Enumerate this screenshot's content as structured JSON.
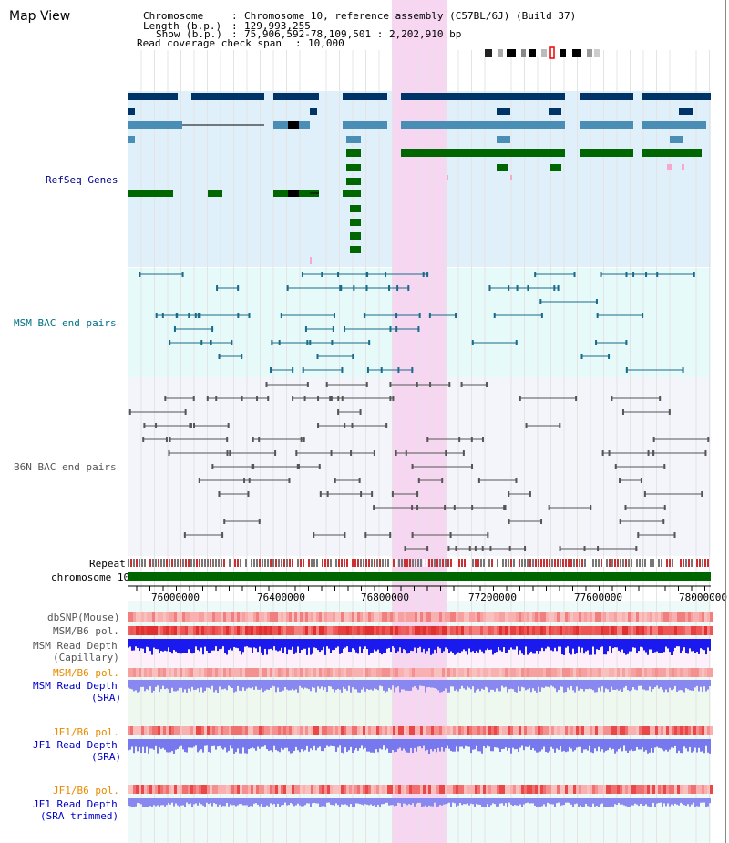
{
  "app": {
    "title": "Map View"
  },
  "header": {
    "chromosome_label": "Chromosome",
    "chromosome_value": "Chromosome 10, reference assembly (C57BL/6J) (Build 37)",
    "length_label": "Length (b.p.)",
    "length_value": "129,993,255",
    "show_label": "Show (b.p.)",
    "show_value": "75,906,592-78,109,501 : 2,202,910 bp",
    "coverage_label": "Read coverage check span",
    "coverage_value": "10,000"
  },
  "tracks": {
    "refseq": "RefSeq Genes",
    "msm_bac": "MSM BAC end pairs",
    "b6n_bac": "B6N BAC end pairs",
    "repeat": "Repeat",
    "chromosome": "chromosome 10",
    "dbsnp": "dbSNP(Mouse)",
    "msm_pol": "MSM/B6 pol.",
    "msm_depth_cap_1": "MSM Read Depth",
    "msm_depth_cap_2": "(Capillary)",
    "msm_pol_2": "MSM/B6 pol.",
    "msm_depth_sra_1": "MSM Read Depth",
    "msm_depth_sra_2": "(SRA)",
    "jf1_pol": "JF1/B6 pol.",
    "jf1_depth_1": "JF1 Read Depth",
    "jf1_depth_2": "(SRA)",
    "jf1_pol_2": "JF1/B6 pol.",
    "jf1_trim_1": "JF1 Read Depth",
    "jf1_trim_2": "(SRA trimmed)"
  },
  "axis": {
    "ticks": [
      "76000000",
      "76400000",
      "76800000",
      "77200000",
      "77600000",
      "78000000"
    ]
  },
  "colors": {
    "refseq_bg": "#dff0fa",
    "msm_bg": "#e6fafa",
    "b6n_bg": "#f4f4fb",
    "highlight": "#f6d6f0",
    "navy_gene": "#003366",
    "blue_gene": "#4a8eb5",
    "green_gene": "#006600",
    "chromosome_bar": "#006600"
  }
}
